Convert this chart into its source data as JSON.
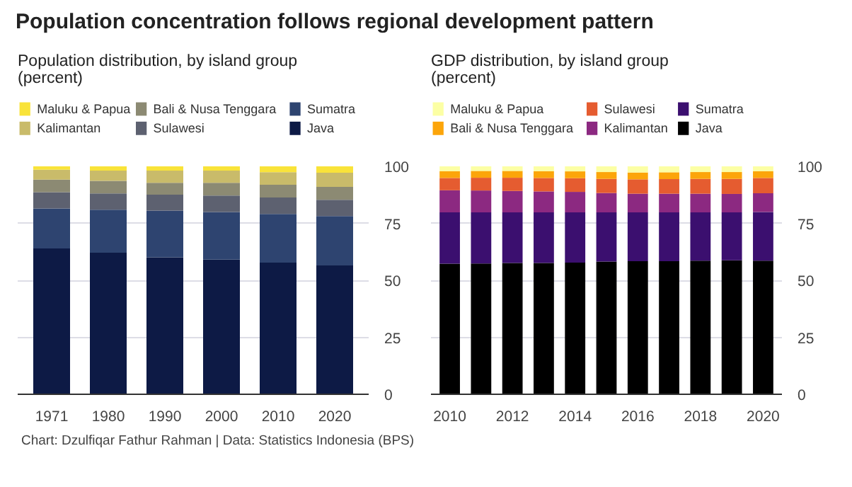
{
  "chart_data": [
    {
      "type": "bar",
      "stacked": true,
      "title": "Population concentration follows regional development pattern",
      "subtitle": "Population distribution, by island group\n(percent)",
      "annotations": [
        "Chart: Dzulfiqar Fathur Rahman | Data: Statistics Indonesia (BPS)"
      ],
      "categories": [
        "1971",
        "1980",
        "1990",
        "2000",
        "2010",
        "2020"
      ],
      "series": [
        {
          "name": "Java",
          "color": "#0d1a45",
          "values": [
            64.0,
            62.1,
            60.1,
            59.1,
            57.8,
            56.5
          ]
        },
        {
          "name": "Sumatra",
          "color": "#2e4470",
          "values": [
            17.5,
            18.9,
            20.5,
            20.9,
            21.3,
            21.7
          ]
        },
        {
          "name": "Sulawesi",
          "color": "#5d6170",
          "values": [
            7.2,
            7.1,
            7.0,
            7.2,
            7.2,
            7.1
          ]
        },
        {
          "name": "Bali & Nusa Tenggara",
          "color": "#8c8a73",
          "values": [
            5.5,
            5.5,
            5.2,
            5.6,
            5.6,
            5.7
          ]
        },
        {
          "name": "Kalimantan",
          "color": "#c9bb6a",
          "values": [
            4.3,
            4.5,
            5.3,
            5.3,
            5.5,
            6.2
          ]
        },
        {
          "name": "Maluku & Papua",
          "color": "#f9e339",
          "values": [
            1.5,
            1.9,
            1.9,
            1.9,
            2.6,
            2.8
          ]
        }
      ],
      "ylim": [
        0,
        100
      ],
      "yticks": [
        0,
        25,
        50,
        75,
        100
      ],
      "grid": "y",
      "legend": "top"
    },
    {
      "type": "bar",
      "stacked": true,
      "subtitle": "GDP distribution, by island group\n(percent)",
      "categories": [
        "2010",
        null,
        "2012",
        null,
        "2014",
        null,
        "2016",
        null,
        "2018",
        null,
        "2020"
      ],
      "series": [
        {
          "name": "Java",
          "color": "#000000",
          "values": [
            57.3,
            57.4,
            57.6,
            57.6,
            57.8,
            58.2,
            58.4,
            58.4,
            58.6,
            58.8,
            58.6
          ]
        },
        {
          "name": "Sumatra",
          "color": "#3b0f6f",
          "values": [
            22.5,
            22.4,
            22.2,
            22.2,
            22.0,
            21.6,
            21.4,
            21.4,
            21.2,
            21.0,
            21.4
          ]
        },
        {
          "name": "Kalimantan",
          "color": "#8c2981",
          "values": [
            9.7,
            9.6,
            9.4,
            9.2,
            9.0,
            8.5,
            8.2,
            8.2,
            8.2,
            8.1,
            8.2
          ]
        },
        {
          "name": "Sulawesi",
          "color": "#e55c30",
          "values": [
            5.4,
            5.6,
            5.8,
            5.9,
            6.0,
            6.2,
            6.3,
            6.4,
            6.5,
            6.6,
            6.7
          ]
        },
        {
          "name": "Bali & Nusa Tenggara",
          "color": "#fca50a",
          "values": [
            3.0,
            3.0,
            3.0,
            3.0,
            3.0,
            3.0,
            3.0,
            3.0,
            3.0,
            3.0,
            3.0
          ]
        },
        {
          "name": "Maluku & Papua",
          "color": "#fcffa4",
          "values": [
            2.1,
            2.0,
            2.0,
            2.1,
            2.2,
            2.5,
            2.7,
            2.6,
            2.5,
            2.5,
            2.1
          ]
        }
      ],
      "ylim": [
        0,
        100
      ],
      "yticks": [
        0,
        25,
        50,
        75,
        100
      ],
      "grid": "y",
      "legend": "top"
    }
  ]
}
